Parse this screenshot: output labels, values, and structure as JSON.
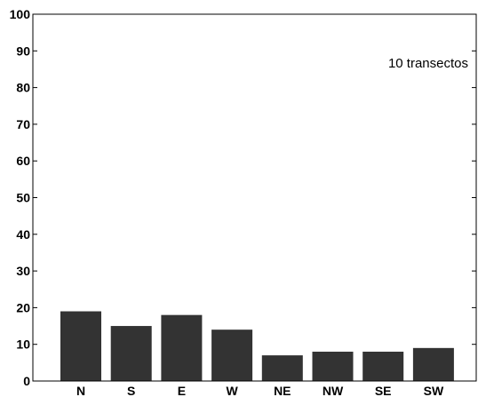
{
  "chart_data": {
    "type": "bar",
    "categories": [
      "N",
      "S",
      "E",
      "W",
      "NE",
      "NW",
      "SE",
      "SW"
    ],
    "values": [
      19,
      15,
      18,
      14,
      7,
      8,
      8,
      9
    ],
    "ylim": [
      0,
      100
    ],
    "yticks": [
      0,
      10,
      20,
      30,
      40,
      50,
      60,
      70,
      80,
      90,
      100
    ],
    "annotation": "10 transectos",
    "bar_color": "#333333",
    "grid": false,
    "title": "",
    "xlabel": "",
    "ylabel": ""
  }
}
